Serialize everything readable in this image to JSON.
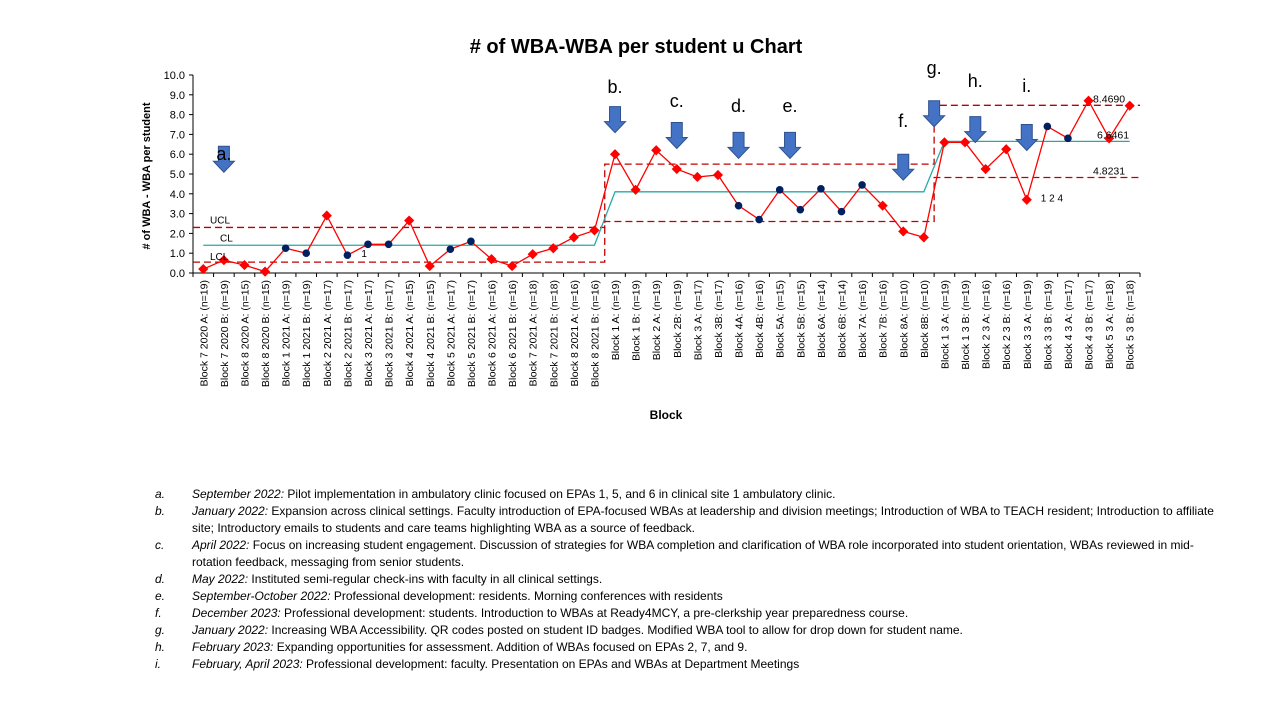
{
  "chart_data": {
    "type": "line",
    "title": "# of WBA-WBA per student u Chart",
    "xlabel": "Block",
    "ylabel": "# of WBA - WBA per student",
    "ylim": [
      0,
      10
    ],
    "yticks": [
      "0.0",
      "1.0",
      "2.0",
      "3.0",
      "4.0",
      "5.0",
      "6.0",
      "7.0",
      "8.0",
      "9.0",
      "10.0"
    ],
    "categories": [
      "Block 7 2020 A: (n=19)",
      "Block 7 2020 B: (n=19)",
      "Block 8 2020 A: (n=15)",
      "Block 8 2020 B: (n=15)",
      "Block 1 2021 A: (n=19)",
      "Block 1 2021 B: (n=19)",
      "Block 2 2021 A: (n=17)",
      "Block 2 2021 B: (n=17)",
      "Block 3 2021 A: (n=17)",
      "Block 3 2021 B: (n=17)",
      "Block 4 2021 A: (n=15)",
      "Block 4 2021 B: (n=15)",
      "Block 5 2021 A: (n=17)",
      "Block 5 2021 B: (n=17)",
      "Block 6 2021 A: (n=16)",
      "Block 6 2021 B: (n=16)",
      "Block 7 2021 A: (n=18)",
      "Block 7 2021 B: (n=18)",
      "Block 8 2021 A: (n=16)",
      "Block 8 2021 B: (n=16)",
      "Block 1 A: (n=19)",
      "Block 1 B: (n=19)",
      "Block 2 A: (n=19)",
      "Block 2B: (n=19)",
      "Block 3 A: (n=17)",
      "Block 3B: (n=17)",
      "Block 4A: (n=16)",
      "Block 4B: (n=16)",
      "Block 5A: (n=15)",
      "Block 5B: (n=15)",
      "Block 6A: (n=14)",
      "Block 6B: (n=14)",
      "Block 7A: (n=16)",
      "Block 7B: (n=16)",
      "Block 8A: (n=10)",
      "Block 8B: (n=10)",
      "Block 1 3 A: (n=19)",
      "Block 1 3 B: (n=19)",
      "Block 2 3 A: (n=16)",
      "Block 2 3 B: (n=16)",
      "Block 3 3 A: (n=19)",
      "Block 3 3 B: (n=19)",
      "Block 4 3 A: (n=17)",
      "Block 4 3 B: (n=17)",
      "Block 5 3 A: (n=18)",
      "Block 5 3 B: (n=18)"
    ],
    "values": [
      0.2,
      0.65,
      0.4,
      0.07,
      1.25,
      1.0,
      2.9,
      0.9,
      1.45,
      1.45,
      2.65,
      0.35,
      1.2,
      1.6,
      0.7,
      0.35,
      0.95,
      1.25,
      1.8,
      2.15,
      6.0,
      4.2,
      6.2,
      5.25,
      4.85,
      4.95,
      3.4,
      2.7,
      4.2,
      3.2,
      4.25,
      3.1,
      4.45,
      3.4,
      2.1,
      1.8,
      6.6,
      6.6,
      5.25,
      6.25,
      3.7,
      7.4,
      6.8,
      8.7,
      6.8,
      8.45
    ],
    "signal_points": [
      0,
      1,
      2,
      3,
      6,
      10,
      11,
      14,
      15,
      16,
      17,
      18,
      19,
      20,
      21,
      22,
      23,
      24,
      25,
      33,
      34,
      35,
      36,
      37,
      38,
      39,
      40,
      43,
      44,
      45
    ],
    "phases": [
      {
        "start": 0,
        "end": 19,
        "cl": 1.4,
        "ucl": 2.3,
        "lcl": 0.55
      },
      {
        "start": 20,
        "end": 35,
        "cl": 4.1,
        "ucl": 5.5,
        "lcl": 2.6
      },
      {
        "start": 36,
        "end": 45,
        "cl": 6.6461,
        "ucl": 8.469,
        "lcl": 4.8231
      }
    ],
    "line_labels": {
      "ucl": "UCL",
      "cl": "CL",
      "lcl": "LCL"
    },
    "value_labels": {
      "ucl": "8.4690",
      "cl": "6.6461",
      "lcl": "4.8231"
    },
    "rule_labels": [
      {
        "index": 7,
        "text": "1"
      },
      {
        "index": 40,
        "text": "1 2 4"
      }
    ],
    "annotations": [
      {
        "letter": "a.",
        "index": 1
      },
      {
        "letter": "b.",
        "index": 20
      },
      {
        "letter": "c.",
        "index": 23
      },
      {
        "letter": "d.",
        "index": 26
      },
      {
        "letter": "e.",
        "index": 28.5
      },
      {
        "letter": "f.",
        "index": 34
      },
      {
        "letter": "g.",
        "index": 35.5
      },
      {
        "letter": "h.",
        "index": 37.5
      },
      {
        "letter": "i.",
        "index": 40
      }
    ],
    "colors": {
      "signal": "#ff0000",
      "normal": "#002060",
      "center": "#2aa8a8",
      "limit": "#c00000",
      "arrow": "#4472c4",
      "arrow_stroke": "#2f528f"
    }
  },
  "notes": [
    {
      "letter": "a.",
      "date": "September 2022:",
      "text": " Pilot implementation in ambulatory clinic focused on EPAs 1, 5, and 6 in clinical site 1 ambulatory clinic."
    },
    {
      "letter": "b.",
      "date": "January 2022:",
      "text": " Expansion across clinical settings. Faculty introduction of EPA-focused WBAs at leadership and division meetings; Introduction of WBA to TEACH resident; Introduction to affiliate site;  Introductory emails to students and care teams highlighting WBA as a source of feedback."
    },
    {
      "letter": "c.",
      "date": "April 2022:",
      "text": " Focus on increasing student engagement. Discussion of strategies for WBA completion and clarification of WBA role incorporated into student orientation, WBAs reviewed in mid-rotation feedback, messaging from senior students."
    },
    {
      "letter": "d.",
      "date": "May 2022:",
      "text": " Instituted semi-regular check-ins with faculty in all clinical settings."
    },
    {
      "letter": "e.",
      "date": "September-October 2022:",
      "text": " Professional development: residents. Morning conferences with residents"
    },
    {
      "letter": "f.",
      "date": "December 2023:",
      "text": " Professional development: students. Introduction to WBAs at Ready4MCY, a pre-clerkship year preparedness course."
    },
    {
      "letter": "g.",
      "date": "January 2022:",
      "text": " Increasing WBA Accessibility. QR codes posted on student ID badges. Modified WBA tool to allow for drop down for student name."
    },
    {
      "letter": "h.",
      "date": "February 2023:",
      "text": " Expanding opportunities for assessment. Addition of WBAs focused on EPAs 2, 7, and 9."
    },
    {
      "letter": "i.",
      "date": "February, April 2023:",
      "text": " Professional development: faculty. Presentation on EPAs and WBAs at Department Meetings"
    }
  ]
}
